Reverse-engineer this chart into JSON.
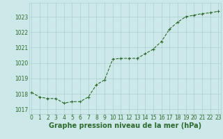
{
  "hours": [
    0,
    1,
    2,
    3,
    4,
    5,
    6,
    7,
    8,
    9,
    10,
    11,
    12,
    13,
    14,
    15,
    16,
    17,
    18,
    19,
    20,
    21,
    22,
    23
  ],
  "pressure": [
    1018.1,
    1017.8,
    1017.7,
    1017.7,
    1017.4,
    1017.5,
    1017.5,
    1017.8,
    1018.6,
    1018.9,
    1020.25,
    1020.3,
    1020.3,
    1020.3,
    1020.6,
    1020.9,
    1021.4,
    1022.2,
    1022.65,
    1023.0,
    1023.1,
    1023.2,
    1023.25,
    1023.35
  ],
  "line_color": "#2d6a2d",
  "marker": "+",
  "marker_color": "#2d6a2d",
  "bg_color": "#cce8e8",
  "grid_color": "#aacfcf",
  "tick_label_color": "#2d6a2d",
  "xlabel": "Graphe pression niveau de la mer (hPa)",
  "xlabel_color": "#2d6a2d",
  "ylabel_color": "#2d6a2d",
  "ylim": [
    1016.7,
    1023.9
  ],
  "yticks": [
    1017,
    1018,
    1019,
    1020,
    1021,
    1022,
    1023
  ],
  "xticks": [
    0,
    1,
    2,
    3,
    4,
    5,
    6,
    7,
    8,
    9,
    10,
    11,
    12,
    13,
    14,
    15,
    16,
    17,
    18,
    19,
    20,
    21,
    22,
    23
  ],
  "tick_fontsize": 5.5,
  "xlabel_fontsize": 7.0,
  "xlim": [
    -0.3,
    23.3
  ]
}
